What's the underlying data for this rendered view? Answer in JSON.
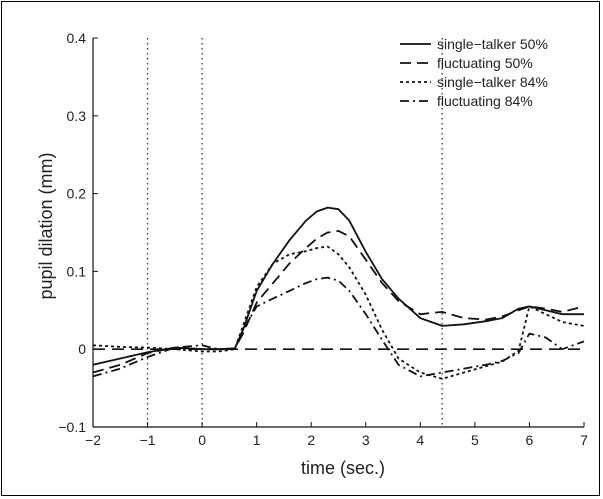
{
  "chart_data": {
    "type": "line",
    "xlabel": "time (sec.)",
    "ylabel": "pupil dilation (mm)",
    "xlim": [
      -2,
      7
    ],
    "ylim": [
      -0.1,
      0.4
    ],
    "xticks": [
      -2,
      -1,
      0,
      1,
      2,
      3,
      4,
      5,
      6,
      7
    ],
    "xtick_labels": [
      "−2",
      "−1",
      "0",
      "1",
      "2",
      "3",
      "4",
      "5",
      "6",
      "7"
    ],
    "yticks": [
      -0.1,
      0,
      0.1,
      0.2,
      0.3,
      0.4
    ],
    "ytick_labels": [
      "−0.1",
      "0",
      "0.1",
      "0.2",
      "0.3",
      "0.4"
    ],
    "vertical_markers": [
      -1,
      0,
      4.4
    ],
    "baseline": 0,
    "legend_position": "top-right",
    "series": [
      {
        "name": "single−talker 50%",
        "style": "solid",
        "x": [
          -2,
          -1.5,
          -1,
          -0.5,
          0,
          0.3,
          0.6,
          0.75,
          1,
          1.3,
          1.6,
          1.9,
          2.1,
          2.3,
          2.5,
          2.7,
          3,
          3.3,
          3.6,
          4,
          4.4,
          4.8,
          5.2,
          5.5,
          5.8,
          6,
          6.3,
          6.6,
          7
        ],
        "y": [
          -0.02,
          -0.012,
          -0.004,
          0.002,
          0.0,
          0.0,
          0.001,
          0.025,
          0.075,
          0.11,
          0.14,
          0.165,
          0.177,
          0.182,
          0.18,
          0.165,
          0.125,
          0.09,
          0.065,
          0.04,
          0.03,
          0.032,
          0.036,
          0.04,
          0.052,
          0.055,
          0.05,
          0.045,
          0.045
        ]
      },
      {
        "name": "fluctuating 50%",
        "style": "dashed",
        "x": [
          -2,
          -1.5,
          -1,
          -0.5,
          0,
          0.3,
          0.6,
          0.75,
          1,
          1.3,
          1.6,
          1.9,
          2.1,
          2.3,
          2.5,
          2.7,
          3,
          3.3,
          3.6,
          4,
          4.4,
          4.8,
          5.2,
          5.5,
          5.8,
          6,
          6.3,
          6.6,
          7
        ],
        "y": [
          -0.03,
          -0.02,
          -0.005,
          0.002,
          0.0,
          0.0,
          0.001,
          0.02,
          0.06,
          0.085,
          0.11,
          0.13,
          0.142,
          0.15,
          0.152,
          0.145,
          0.115,
          0.085,
          0.062,
          0.045,
          0.048,
          0.04,
          0.038,
          0.042,
          0.05,
          0.055,
          0.052,
          0.048,
          0.055
        ]
      },
      {
        "name": "single−talker 84%",
        "style": "dotted",
        "x": [
          -2,
          -1.5,
          -1,
          -0.5,
          0,
          0.3,
          0.6,
          0.75,
          1,
          1.3,
          1.6,
          1.9,
          2.1,
          2.3,
          2.5,
          2.7,
          3,
          3.3,
          3.6,
          4,
          4.4,
          4.8,
          5.2,
          5.5,
          5.8,
          6,
          6.3,
          6.6,
          7
        ],
        "y": [
          0.005,
          0.003,
          0.002,
          0.0,
          -0.003,
          -0.003,
          0.0,
          0.03,
          0.08,
          0.11,
          0.122,
          0.126,
          0.13,
          0.132,
          0.122,
          0.105,
          0.07,
          0.025,
          -0.012,
          -0.03,
          -0.038,
          -0.03,
          -0.022,
          -0.016,
          -0.002,
          0.055,
          0.045,
          0.035,
          0.03
        ]
      },
      {
        "name": "fluctuating 84%",
        "style": "dashdot",
        "x": [
          -2,
          -1.5,
          -1,
          -0.5,
          0,
          0.3,
          0.6,
          0.75,
          1,
          1.3,
          1.6,
          1.9,
          2.1,
          2.3,
          2.5,
          2.7,
          3,
          3.3,
          3.6,
          4,
          4.4,
          4.8,
          5.2,
          5.5,
          5.8,
          6,
          6.3,
          6.6,
          7
        ],
        "y": [
          -0.035,
          -0.025,
          -0.01,
          0.002,
          0.005,
          0.0,
          0.0,
          0.025,
          0.055,
          0.065,
          0.075,
          0.085,
          0.09,
          0.092,
          0.088,
          0.075,
          0.045,
          0.012,
          -0.02,
          -0.035,
          -0.03,
          -0.025,
          -0.02,
          -0.015,
          -0.005,
          0.02,
          0.015,
          0.0,
          0.01
        ]
      }
    ]
  }
}
